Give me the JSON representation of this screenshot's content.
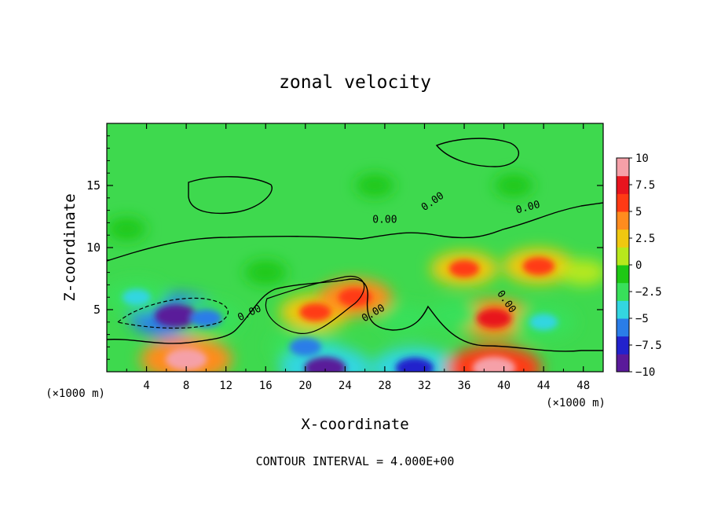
{
  "chart_data": {
    "type": "heatmap",
    "title": "zonal velocity",
    "xlabel": "X-coordinate",
    "ylabel": "Z-coordinate",
    "x_unit": "(×1000 m)",
    "x_unit_right": "(×1000 m)",
    "footer": "CONTOUR INTERVAL = 4.000E+00",
    "xlim": [
      0,
      50
    ],
    "ylim": [
      0,
      20
    ],
    "x_ticks": [
      4,
      8,
      12,
      16,
      20,
      24,
      28,
      32,
      36,
      40,
      44,
      48
    ],
    "y_ticks": [
      5,
      10,
      15
    ],
    "grid": false,
    "colorbar": {
      "ticks": [
        "10",
        "7.5",
        "5",
        "2.5",
        "0",
        "−2.5",
        "−5",
        "−7.5",
        "−10"
      ],
      "range": [
        -10,
        10
      ],
      "colors": [
        "#5a1a9a",
        "#2222cc",
        "#2a7de8",
        "#33d6e0",
        "#38e05a",
        "#1ec814",
        "#b8e81c",
        "#f0c810",
        "#ff8c1e",
        "#ff3a14",
        "#e8141e",
        "#f5a0a8"
      ]
    },
    "contour_labels": [
      "0.00",
      "0.00",
      "0.00",
      "0.00",
      "0.00",
      "0.00"
    ],
    "features": [
      {
        "x": 7,
        "z": 4.5,
        "value": -9.5
      },
      {
        "x": 10,
        "z": 4.3,
        "value": -6
      },
      {
        "x": 3,
        "z": 6,
        "value": -5
      },
      {
        "x": 21,
        "z": 4.8,
        "value": 6
      },
      {
        "x": 25,
        "z": 6,
        "value": 6.5
      },
      {
        "x": 8,
        "z": 1,
        "value": 9
      },
      {
        "x": 39,
        "z": 4.3,
        "value": 7
      },
      {
        "x": 36,
        "z": 8.3,
        "value": 5.5
      },
      {
        "x": 43.5,
        "z": 8.5,
        "value": 6
      },
      {
        "x": 20,
        "z": 2,
        "value": -6
      },
      {
        "x": 22,
        "z": 0.3,
        "value": -9
      },
      {
        "x": 31,
        "z": 0.3,
        "value": -8
      },
      {
        "x": 39,
        "z": 0.3,
        "value": 9.5
      },
      {
        "x": 44,
        "z": 4,
        "value": -5
      },
      {
        "x": 30,
        "z": 4.2,
        "value": -3.5
      },
      {
        "x": 35,
        "z": 4.5,
        "value": -3.5
      },
      {
        "x": 2,
        "z": 11.5,
        "value": -1.5
      },
      {
        "x": 27,
        "z": 15,
        "value": -1.5
      },
      {
        "x": 41,
        "z": 15,
        "value": -1.5
      },
      {
        "x": 48,
        "z": 8,
        "value": 2.5
      },
      {
        "x": 16,
        "z": 8,
        "value": -2
      }
    ]
  }
}
